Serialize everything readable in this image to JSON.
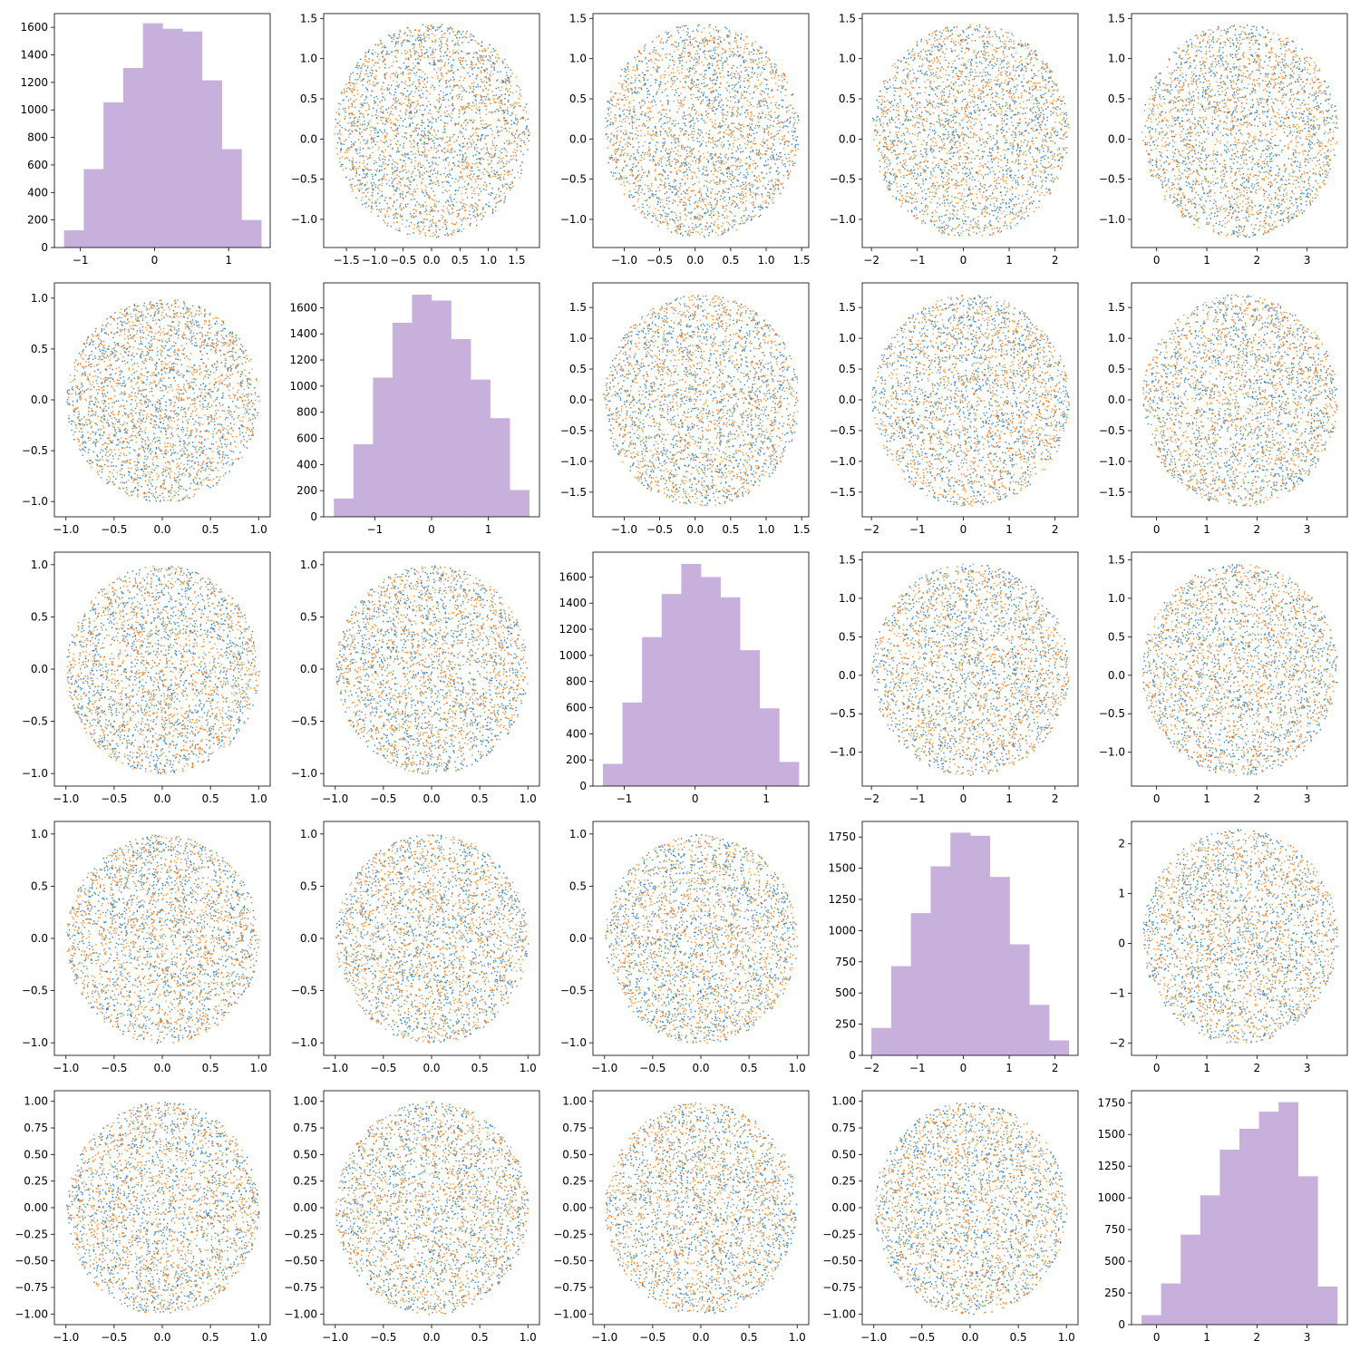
{
  "figure": {
    "grid_rows": 5,
    "grid_cols": 5,
    "colors": {
      "hist": "#c8b0dc",
      "series_a": "#1f77b4",
      "series_b": "#ff7f0e",
      "axis": "#000000"
    }
  },
  "variables": [
    {
      "range": [
        -1.22,
        1.44
      ],
      "limits": [
        -1.35,
        1.56
      ],
      "ticks": [
        -1,
        0,
        1
      ]
    },
    {
      "range": [
        -1.72,
        1.72
      ],
      "limits": [
        -1.9,
        1.9
      ],
      "ticks": [
        -1.5,
        -1.0,
        -0.5,
        0.0,
        0.5,
        1.0,
        1.5
      ]
    },
    {
      "range": [
        -1.3,
        1.46
      ],
      "limits": [
        -1.44,
        1.6
      ],
      "ticks": [
        -1.0,
        -0.5,
        0.0,
        0.5,
        1.0,
        1.5
      ]
    },
    {
      "range": [
        -2.0,
        2.3
      ],
      "limits": [
        -2.2,
        2.5
      ],
      "ticks": [
        -2,
        -1,
        0,
        1,
        2
      ]
    },
    {
      "range": [
        -0.3,
        3.6
      ],
      "limits": [
        -0.5,
        3.8
      ],
      "ticks": [
        0,
        1,
        2,
        3
      ]
    }
  ],
  "uniform_limits": {
    "r1": {
      "limits": [
        -1.12,
        1.12
      ],
      "ticks": [
        -1.0,
        -0.5,
        0.0,
        0.5,
        1.0
      ]
    },
    "r4": {
      "limits": [
        -1.1,
        1.1
      ],
      "ticks": [
        -1.0,
        -0.75,
        -0.5,
        -0.25,
        0.0,
        0.25,
        0.5,
        0.75,
        1.0
      ],
      "decimals": 2
    }
  },
  "chart_data": [
    {
      "type": "bar",
      "panel": "hist-0",
      "bin_edges": [
        -1.22,
        -0.954,
        -0.688,
        -0.422,
        -0.156,
        0.11,
        0.376,
        0.642,
        0.908,
        1.174,
        1.44
      ],
      "values": [
        125,
        570,
        1055,
        1305,
        1630,
        1590,
        1570,
        1215,
        715,
        200
      ],
      "ylim": [
        0,
        1700
      ],
      "yticks": [
        0,
        200,
        400,
        600,
        800,
        1000,
        1200,
        1400,
        1600
      ],
      "xticks": [
        -1,
        0,
        1
      ]
    },
    {
      "type": "bar",
      "panel": "hist-1",
      "bin_edges": [
        -1.72,
        -1.376,
        -1.032,
        -0.688,
        -0.344,
        0.0,
        0.344,
        0.688,
        1.032,
        1.376,
        1.72
      ],
      "values": [
        140,
        555,
        1065,
        1485,
        1700,
        1655,
        1360,
        1050,
        755,
        205
      ],
      "ylim": [
        0,
        1790
      ],
      "yticks": [
        0,
        200,
        400,
        600,
        800,
        1000,
        1200,
        1400,
        1600
      ],
      "xticks": [
        -1,
        0,
        1
      ]
    },
    {
      "type": "bar",
      "panel": "hist-2",
      "bin_edges": [
        -1.3,
        -1.024,
        -0.748,
        -0.472,
        -0.196,
        0.08,
        0.356,
        0.632,
        0.908,
        1.184,
        1.46
      ],
      "values": [
        170,
        640,
        1140,
        1470,
        1700,
        1600,
        1445,
        1040,
        595,
        185
      ],
      "ylim": [
        0,
        1790
      ],
      "yticks": [
        0,
        200,
        400,
        600,
        800,
        1000,
        1200,
        1400,
        1600
      ],
      "xticks": [
        -1,
        0,
        1
      ]
    },
    {
      "type": "bar",
      "panel": "hist-3",
      "bin_edges": [
        -2.0,
        -1.57,
        -1.14,
        -0.71,
        -0.28,
        0.15,
        0.58,
        1.01,
        1.44,
        1.87,
        2.3
      ],
      "values": [
        220,
        715,
        1140,
        1515,
        1785,
        1760,
        1430,
        890,
        405,
        120
      ],
      "ylim": [
        0,
        1875
      ],
      "yticks": [
        0,
        250,
        500,
        750,
        1000,
        1250,
        1500,
        1750
      ],
      "xticks": [
        -2,
        -1,
        0,
        1,
        2
      ]
    },
    {
      "type": "bar",
      "panel": "hist-4",
      "bin_edges": [
        -0.3,
        0.09,
        0.48,
        0.87,
        1.26,
        1.65,
        2.04,
        2.43,
        2.82,
        3.21,
        3.6
      ],
      "values": [
        75,
        325,
        710,
        1020,
        1380,
        1545,
        1680,
        1755,
        1170,
        300
      ],
      "ylim": [
        0,
        1845
      ],
      "yticks": [
        0,
        250,
        500,
        750,
        1000,
        1250,
        1500,
        1750
      ],
      "xticks": [
        0,
        1,
        2,
        3
      ]
    },
    {
      "type": "scatter",
      "panel": "pair-grid",
      "series": [
        {
          "color": "#1f77b4"
        },
        {
          "color": "#ff7f0e"
        }
      ],
      "points_per_series_per_panel": 1400,
      "note_shape": "disc-like clouds; off-diagonal panels share column/row variable ranges"
    }
  ]
}
